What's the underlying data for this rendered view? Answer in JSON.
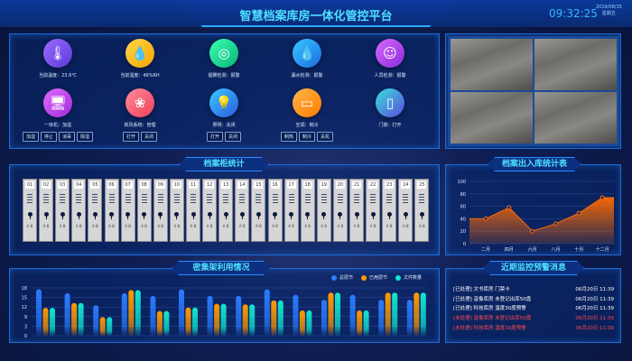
{
  "header": {
    "title": "智慧档案库房一体化管控平台",
    "time": "09:32:25",
    "date": "2019/08/15",
    "weekday": "星期五"
  },
  "devices": [
    {
      "label": "当前温度：23.6℃",
      "icon": "thermometer-icon",
      "glyph": "🌡",
      "color": [
        "#9b6bff",
        "#5a3ad8"
      ],
      "buttons": []
    },
    {
      "label": "当前湿度：46%RH",
      "icon": "droplet-icon",
      "glyph": "💧",
      "color": [
        "#ffd84a",
        "#f5a300"
      ],
      "buttons": []
    },
    {
      "label": "烟雾检测：报警",
      "icon": "smoke-detector-icon",
      "glyph": "◎",
      "color": [
        "#3affb0",
        "#0ab47a"
      ],
      "buttons": []
    },
    {
      "label": "漏水检测：报警",
      "icon": "water-leak-icon",
      "glyph": "💧",
      "color": [
        "#3ac8ff",
        "#1a6be0"
      ],
      "buttons": []
    },
    {
      "label": "人员检测：报警",
      "icon": "person-icon",
      "glyph": "☺",
      "color": [
        "#d86bff",
        "#8a2ad8"
      ],
      "buttons": []
    },
    {
      "label": "一体机：加湿",
      "icon": "monitor-icon",
      "glyph": "🖥",
      "color": [
        "#e06bff",
        "#a02ad8"
      ],
      "buttons": [
        "加湿",
        "停止",
        "消毒",
        "除湿"
      ]
    },
    {
      "label": "新风系统：管理",
      "icon": "fresh-air-icon",
      "glyph": "❀",
      "color": [
        "#ff8a9a",
        "#f0405a"
      ],
      "buttons": [
        "打开",
        "关闭"
      ]
    },
    {
      "label": "照明：关闭",
      "icon": "light-bulb-icon",
      "glyph": "💡",
      "color": [
        "#3ac8ff",
        "#2a5ae0"
      ],
      "buttons": [
        "打开",
        "关闭"
      ]
    },
    {
      "label": "空调：制冷",
      "icon": "air-conditioner-icon",
      "glyph": "▭",
      "color": [
        "#ffb84a",
        "#ff7a00"
      ],
      "buttons": [
        "制热",
        "制冷",
        "关机"
      ]
    },
    {
      "label": "门禁：打开",
      "icon": "door-icon",
      "glyph": "▯",
      "color": [
        "#3ae0d8",
        "#5a4ae0"
      ],
      "buttons": []
    }
  ],
  "cabinets": {
    "title": "档案柜统计",
    "numbers": [
      "01",
      "02",
      "03",
      "04",
      "05",
      "06",
      "07",
      "08",
      "09",
      "10",
      "11",
      "12",
      "13",
      "14",
      "15",
      "16",
      "17",
      "18",
      "19",
      "20",
      "21",
      "22",
      "23",
      "24",
      "25"
    ],
    "side_label": "A  B"
  },
  "line_chart": {
    "title": "档案出入库统计表"
  },
  "bar_chart": {
    "title": "密集架利用情况"
  },
  "alerts": {
    "title": "近期监控预警消息",
    "items": [
      {
        "text": "[已处理] 文书库房 门禁卡",
        "time": "06月20日 11:39",
        "status": "handled"
      },
      {
        "text": "[已处理] 音像库房 未登记出库50盘",
        "time": "06月20日 11:39",
        "status": "handled"
      },
      {
        "text": "[已处理] 科技库房 温度30度预警",
        "time": "06月20日 11:39",
        "status": "handled"
      },
      {
        "text": "[未处理] 音像库房 未登记出库50盘",
        "time": "06月20日 11:39",
        "status": "unhandled"
      },
      {
        "text": "[未处理] 科技库房 温度30度预警",
        "time": "06月20日 11:39",
        "status": "unhandled"
      }
    ]
  },
  "chart_data": [
    {
      "type": "area",
      "categories": [
        "二月",
        "四月",
        "六月",
        "八月",
        "十月",
        "十二月"
      ],
      "values": [
        40,
        58,
        20,
        32,
        49,
        74
      ],
      "ylim": [
        0,
        100
      ],
      "yticks": [
        0,
        20,
        40,
        60,
        80,
        100
      ],
      "grid": true,
      "color": "#ff6a00"
    },
    {
      "type": "bar",
      "categories": [
        "1",
        "2",
        "3",
        "4",
        "5",
        "6",
        "7",
        "8",
        "9",
        "10",
        "11",
        "12",
        "13",
        "14"
      ],
      "yticks": [
        "0",
        "3",
        "9",
        "12",
        "15",
        "18"
      ],
      "ylim": [
        0,
        18
      ],
      "grid": true,
      "legend": "top-right",
      "series": [
        {
          "name": "总层节",
          "color": "#2a7bff",
          "values": [
            17.5,
            16,
            11.5,
            16,
            15,
            17.5,
            15,
            15,
            17.5,
            15.4,
            13.5,
            15.4,
            13.5,
            13.5
          ]
        },
        {
          "name": "已用层节",
          "color": "#ff9a00",
          "values": [
            10.5,
            12.3,
            7,
            17.2,
            9.3,
            10.6,
            12,
            11.8,
            13.3,
            9.5,
            16.2,
            9.5,
            16.2,
            16.2
          ]
        },
        {
          "name": "文件数量",
          "color": "#10e8d0",
          "values": [
            10.5,
            12.3,
            7,
            17.2,
            9.3,
            10.6,
            12,
            11.8,
            13.3,
            9.5,
            16.2,
            9.5,
            16.2,
            16.2
          ]
        }
      ]
    }
  ]
}
